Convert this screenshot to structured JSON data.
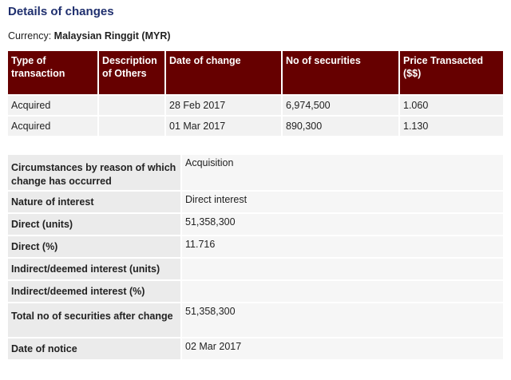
{
  "title": "Details of changes",
  "currency": {
    "label": "Currency:",
    "value": "Malaysian Ringgit (MYR)"
  },
  "changes": {
    "headers": [
      "Type of transaction",
      "Description of Others",
      "Date of change",
      "No of securities",
      "Price Transacted ($$)"
    ],
    "rows": [
      [
        "Acquired",
        "",
        "28 Feb 2017",
        "6,974,500",
        "1.060"
      ],
      [
        "Acquired",
        "",
        "01 Mar 2017",
        "890,300",
        "1.130"
      ]
    ]
  },
  "details": [
    {
      "label": "Circumstances by reason of which change has occurred",
      "value": "Acquisition"
    },
    {
      "label": "Nature of interest",
      "value": "Direct interest"
    },
    {
      "label": "Direct (units)",
      "value": "51,358,300"
    },
    {
      "label": "Direct (%)",
      "value": "11.716"
    },
    {
      "label": "Indirect/deemed interest (units)",
      "value": ""
    },
    {
      "label": "Indirect/deemed interest (%)",
      "value": ""
    },
    {
      "label": "Total no of securities after change",
      "value": "51,358,300"
    },
    {
      "label": "Date of notice",
      "value": "02 Mar 2017"
    }
  ]
}
